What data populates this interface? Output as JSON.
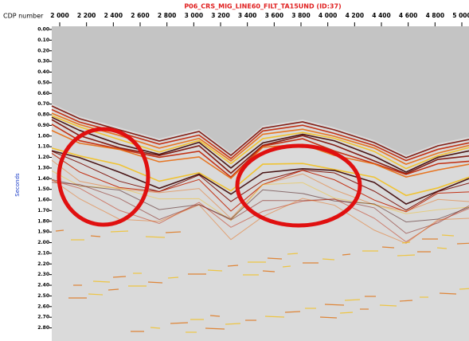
{
  "chart_data": {
    "type": "seismic-section",
    "title": "P06_CRS_MIG_LINE60_FILT_TA15UND (ID:37)",
    "x_label": "CDP number",
    "y_label": "Seconds",
    "xlim": [
      2000,
      5000
    ],
    "xticks": [
      {
        "value": 2000,
        "label": "2 000"
      },
      {
        "value": 2200,
        "label": "2 200"
      },
      {
        "value": 2400,
        "label": "2 400"
      },
      {
        "value": 2600,
        "label": "2 600"
      },
      {
        "value": 2800,
        "label": "2 800"
      },
      {
        "value": 3000,
        "label": "3 000"
      },
      {
        "value": 3200,
        "label": "3 200"
      },
      {
        "value": 3400,
        "label": "3 400"
      },
      {
        "value": 3600,
        "label": "3 600"
      },
      {
        "value": 3800,
        "label": "3 800"
      },
      {
        "value": 4000,
        "label": "4 000"
      },
      {
        "value": 4200,
        "label": "4 200"
      },
      {
        "value": 4400,
        "label": "4 400"
      },
      {
        "value": 4600,
        "label": "4 600"
      },
      {
        "value": 4800,
        "label": "4 800"
      },
      {
        "value": 5000,
        "label": "5 000"
      }
    ],
    "ylim": [
      0,
      2.9
    ],
    "yticks": [
      {
        "value": 0,
        "label": "0.00"
      },
      {
        "value": 0.1,
        "label": "0.10"
      },
      {
        "value": 0.2,
        "label": "0.20"
      },
      {
        "value": 0.3,
        "label": "0.30"
      },
      {
        "value": 0.4,
        "label": "0.40"
      },
      {
        "value": 0.5,
        "label": "0.50"
      },
      {
        "value": 0.6,
        "label": "0.60"
      },
      {
        "value": 0.7,
        "label": "0.70"
      },
      {
        "value": 0.8,
        "label": "0.80"
      },
      {
        "value": 0.9,
        "label": "0.90"
      },
      {
        "value": 1,
        "label": "1.00"
      },
      {
        "value": 1.1,
        "label": "1.10"
      },
      {
        "value": 1.2,
        "label": "1.20"
      },
      {
        "value": 1.3,
        "label": "1.30"
      },
      {
        "value": 1.4,
        "label": "1.40"
      },
      {
        "value": 1.5,
        "label": "1.50"
      },
      {
        "value": 1.6,
        "label": "1.60"
      },
      {
        "value": 1.7,
        "label": "1.70"
      },
      {
        "value": 1.8,
        "label": "1.80"
      },
      {
        "value": 1.9,
        "label": "1.90"
      },
      {
        "value": 2,
        "label": "2.00"
      },
      {
        "value": 2.1,
        "label": "2.10"
      },
      {
        "value": 2.2,
        "label": "2.20"
      },
      {
        "value": 2.3,
        "label": "2.30"
      },
      {
        "value": 2.4,
        "label": "2.40"
      },
      {
        "value": 2.5,
        "label": "2.50"
      },
      {
        "value": 2.6,
        "label": "2.60"
      },
      {
        "value": 2.7,
        "label": "2.70"
      },
      {
        "value": 2.8,
        "label": "2.80"
      }
    ]
  }
}
